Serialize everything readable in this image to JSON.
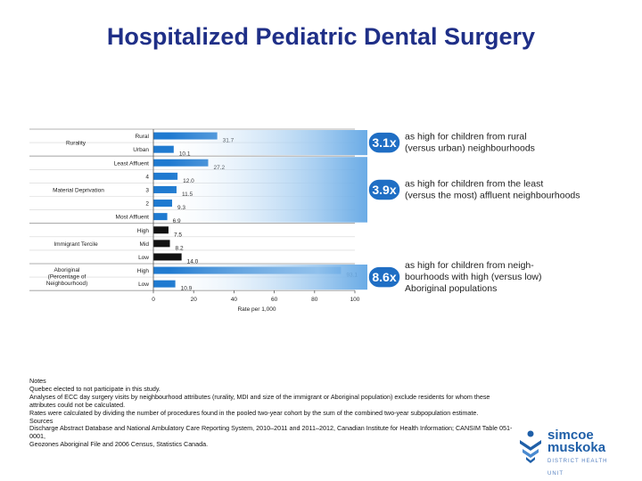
{
  "title": "Hospitalized Pediatric Dental Surgery",
  "chart_data": {
    "type": "bar",
    "orientation": "horizontal",
    "xlabel": "Rate per 1,000",
    "xlim": [
      0,
      100
    ],
    "xticks": [
      0,
      20,
      40,
      60,
      80,
      100
    ],
    "grid": false,
    "groups": [
      {
        "label": "Rurality",
        "rows": [
          {
            "category": "Rural",
            "value": 31.7,
            "label": "31.7",
            "color": "#1f7ad0"
          },
          {
            "category": "Urban",
            "value": 10.1,
            "label": "10.1",
            "color": "#1f7ad0"
          }
        ]
      },
      {
        "label": "Material Deprivation",
        "rows": [
          {
            "category": "Least Affluent",
            "value": 27.2,
            "label": "27.2",
            "color": "#1f7ad0"
          },
          {
            "category": "4",
            "value": 12.0,
            "label": "12.0",
            "color": "#1f7ad0"
          },
          {
            "category": "3",
            "value": 11.5,
            "label": "11.5",
            "color": "#1f7ad0"
          },
          {
            "category": "2",
            "value": 9.3,
            "label": "9.3",
            "color": "#1f7ad0"
          },
          {
            "category": "Most Affluent",
            "value": 6.9,
            "label": "6.9",
            "color": "#1f7ad0"
          }
        ]
      },
      {
        "label": "Immigrant Tercile",
        "rows": [
          {
            "category": "High",
            "value": 7.5,
            "label": "7.5",
            "color": "#111111"
          },
          {
            "category": "Mid",
            "value": 8.2,
            "label": "8.2",
            "color": "#111111"
          },
          {
            "category": "Low",
            "value": 14.0,
            "label": "14.0",
            "color": "#111111"
          }
        ]
      },
      {
        "label": "Aboriginal (Percentage of Neighbourhood)",
        "rows": [
          {
            "category": "High",
            "value": 93.1,
            "label": "93.1",
            "color": "#1f7ad0"
          },
          {
            "category": "Low",
            "value": 10.9,
            "label": "10.9",
            "color": "#1f7ad0"
          }
        ]
      }
    ],
    "callouts": [
      {
        "badge": "3.1x",
        "text": [
          "as high for children from rural",
          "(versus urban) neighbourhoods"
        ]
      },
      {
        "badge": "3.9x",
        "text": [
          "as high for children from the least",
          "(versus the most) affluent neighbourhoods"
        ]
      },
      {
        "badge": "8.6x",
        "text": [
          "as high for children from neigh-",
          "bourhoods with high (versus low)",
          "Aboriginal populations"
        ]
      }
    ],
    "colors": {
      "bar_blue": "#1f7ad0",
      "bar_black": "#111111",
      "badge": "#1f6ec4",
      "title": "#1f2f87"
    }
  },
  "notes": [
    "Notes",
    "Quebec elected to not participate in this study.",
    "Analyses of ECC day surgery visits by neighbourhood attributes (rurality, MDI and size of the immigrant or Aboriginal population) exclude residents for whom these attributes could not be calculated.",
    "Rates were calculated by dividing the number of procedures found in the pooled two-year cohort by the sum of the combined two-year subpopulation estimate.",
    "Sources",
    "Discharge Abstract Database and National Ambulatory Care Reporting System, 2010–2011 and 2011–2012, Canadian Institute for Health Information; CANSIM Table 051-0001,",
    "Geozones Aboriginal File and 2006 Census, Statistics Canada."
  ],
  "logo": {
    "line1": "simcoe",
    "line2": "muskoka",
    "line3": "DISTRICT HEALTH UNIT"
  }
}
